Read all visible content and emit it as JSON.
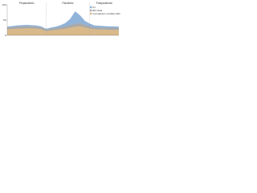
{
  "chart_data": {
    "type": "stacked_area",
    "annotations": [
      "Prepandemic",
      "Pandemic",
      "Postpandemic"
    ],
    "categories": [
      null,
      null,
      null,
      null,
      null,
      null,
      null,
      null,
      null,
      null,
      null,
      null,
      null,
      null,
      null,
      null,
      null,
      null,
      null,
      null,
      null,
      null,
      null,
      null
    ],
    "series": [
      {
        "name": "Comparison condition ED visits",
        "color": "#d9b98a",
        "values": [
          20,
          21,
          22,
          22,
          23,
          23,
          22,
          20,
          14,
          16,
          18,
          20,
          22,
          25,
          28,
          30,
          26,
          22,
          20,
          19,
          19,
          18,
          18,
          18
        ]
      },
      {
        "name": "ED visits",
        "color": "#a9a9a9",
        "values": [
          6,
          6,
          7,
          7,
          7,
          7,
          7,
          6,
          5,
          6,
          6,
          7,
          8,
          9,
          10,
          10,
          9,
          8,
          7,
          7,
          7,
          7,
          7,
          6
        ]
      },
      {
        "name": "ILI",
        "color": "#8fb3d9",
        "values": [
          2,
          3,
          3,
          4,
          4,
          3,
          3,
          3,
          2,
          3,
          4,
          6,
          10,
          20,
          40,
          25,
          12,
          8,
          5,
          5,
          4,
          4,
          4,
          4
        ]
      }
    ],
    "ylim": [
      0,
      100
    ],
    "yticks": [
      0,
      50,
      100
    ]
  }
}
